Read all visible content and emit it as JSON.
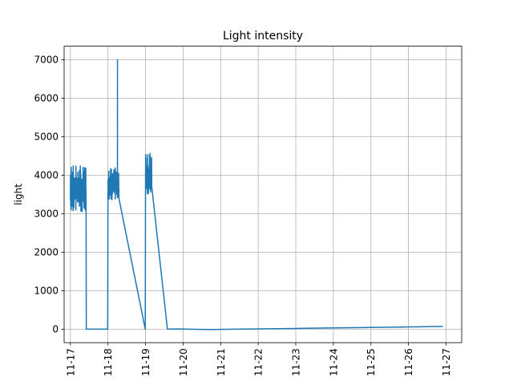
{
  "chart_data": {
    "type": "line",
    "title": "Light intensity",
    "xlabel": "",
    "ylabel": "light",
    "x_ticks": [
      "11-17",
      "11-18",
      "11-19",
      "11-20",
      "11-21",
      "11-22",
      "11-23",
      "11-24",
      "11-25",
      "11-26",
      "11-27"
    ],
    "x_range": [
      "2020-11-16T20:00",
      "2020-11-27T10:00"
    ],
    "y_ticks": [
      0,
      1000,
      2000,
      3000,
      4000,
      5000,
      6000,
      7000
    ],
    "ylim": [
      -350,
      7350
    ],
    "grid": true,
    "color": "#1f77b4",
    "segments": [
      {
        "x_start": "2020-11-17T00:00",
        "x_end": "2020-11-17T10:00",
        "noisy": true,
        "low": 3050,
        "high": 4280,
        "center": 3650,
        "count": 120
      },
      {
        "x_start": "2020-11-18T00:00",
        "x_end": "2020-11-18T07:00",
        "noisy": true,
        "low": 3350,
        "high": 4200,
        "center": 3750,
        "count": 90,
        "spike": {
          "x": "2020-11-18T06:05",
          "y": 7000
        }
      },
      {
        "x_start": "2020-11-19T00:00",
        "x_end": "2020-11-19T04:00",
        "noisy": true,
        "low": 3500,
        "high": 4600,
        "center": 3950,
        "count": 60
      }
    ],
    "series": [
      {
        "name": "",
        "points": [
          [
            "2020-11-17T10:00",
            3600
          ],
          [
            "2020-11-17T10:10",
            0
          ],
          [
            "2020-11-17T23:50",
            0
          ],
          [
            "2020-11-18T00:00",
            3400
          ],
          [
            "2020-11-18T07:00",
            3400
          ],
          [
            "2020-11-18T23:50",
            0
          ],
          [
            "2020-11-19T00:00",
            2900
          ],
          [
            "2020-11-19T04:00",
            3700
          ],
          [
            "2020-11-19T14:00",
            0
          ],
          [
            "2020-11-19T20:00",
            5
          ],
          [
            "2020-11-20T18:00",
            -10
          ],
          [
            "2020-11-21T00:00",
            -5
          ],
          [
            "2020-11-23T00:00",
            20
          ],
          [
            "2020-11-25T00:00",
            45
          ],
          [
            "2020-11-26T22:00",
            70
          ]
        ]
      }
    ]
  }
}
